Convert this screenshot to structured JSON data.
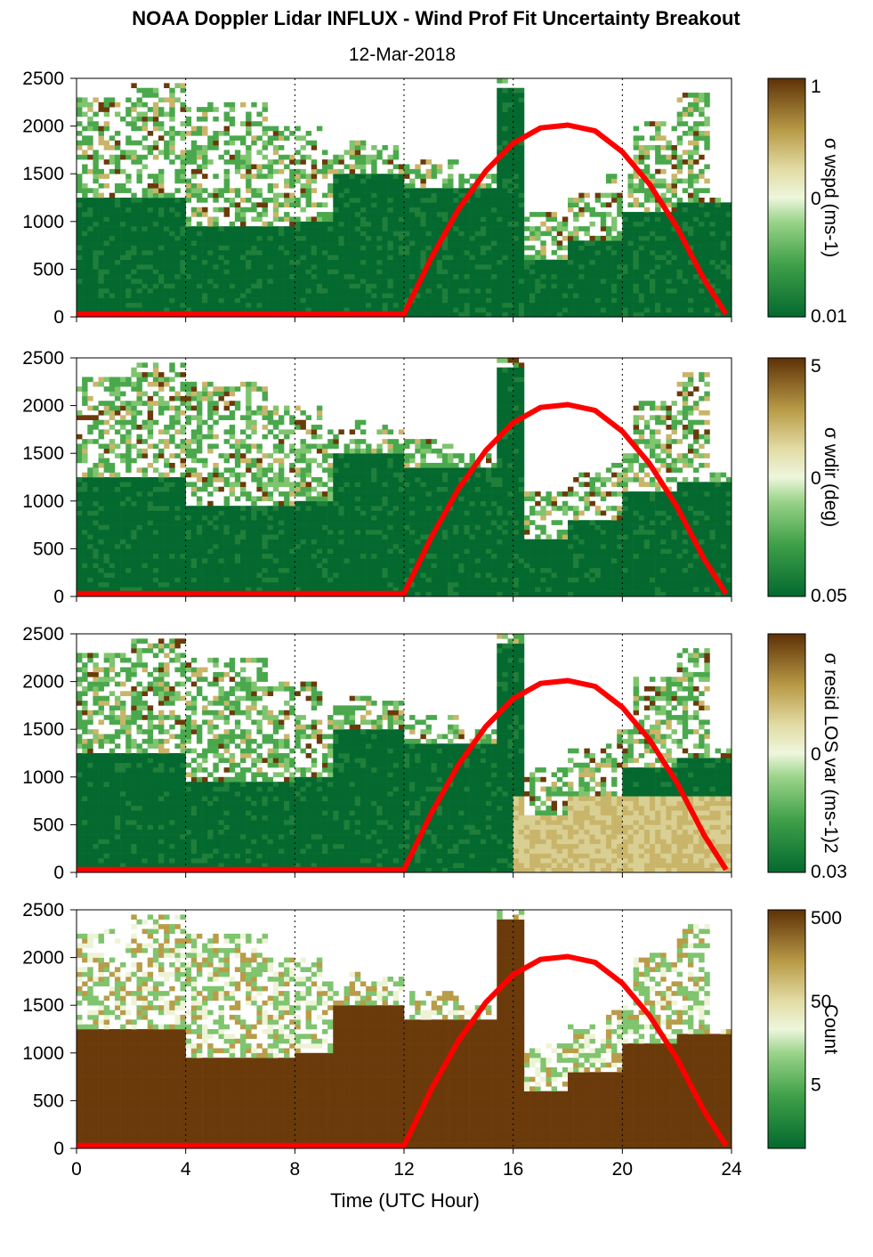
{
  "title": "NOAA Doppler Lidar INFLUX - Wind Prof Fit Uncertainty Breakout",
  "subtitle": "12-Mar-2018",
  "xlabel": "Time (UTC Hour)",
  "colors": {
    "brown": "#6b3a0b",
    "tan": "#c9b56a",
    "pale": "#eef3d6",
    "light_green": "#7fc46e",
    "dark_green": "#04692f",
    "sun_curve": "#ff0000"
  },
  "chart_data": [
    {
      "type": "heatmap",
      "id": "panel-wspd",
      "x_ticks": [
        "0",
        "4",
        "8",
        "12",
        "16",
        "20",
        "24"
      ],
      "y_ticks": [
        "0",
        "500",
        "1000",
        "1500",
        "2000",
        "2500"
      ],
      "xlim": [
        0,
        24
      ],
      "ylim": [
        0,
        2500
      ],
      "colorbar": {
        "label": "σ wspd (ms-1)",
        "ticks": [
          "1",
          "0",
          "0.01"
        ],
        "scale": "log"
      },
      "sun_elevation_curve": {
        "x": [
          0,
          12,
          13,
          14,
          15,
          16,
          17,
          18,
          19,
          20,
          21,
          22,
          23,
          23.8
        ],
        "y": [
          30,
          30,
          620,
          1130,
          1530,
          1820,
          1980,
          2010,
          1950,
          1730,
          1390,
          940,
          390,
          30
        ]
      }
    },
    {
      "type": "heatmap",
      "id": "panel-wdir",
      "x_ticks": [
        "0",
        "4",
        "8",
        "12",
        "16",
        "20",
        "24"
      ],
      "y_ticks": [
        "0",
        "500",
        "1000",
        "1500",
        "2000",
        "2500"
      ],
      "xlim": [
        0,
        24
      ],
      "ylim": [
        0,
        2500
      ],
      "colorbar": {
        "label": "σ wdir (deg)",
        "ticks": [
          "5",
          "0",
          "0.05"
        ],
        "scale": "log"
      },
      "sun_elevation_curve": {
        "x": [
          0,
          12,
          13,
          14,
          15,
          16,
          17,
          18,
          19,
          20,
          21,
          22,
          23,
          23.8
        ],
        "y": [
          30,
          30,
          620,
          1130,
          1530,
          1820,
          1980,
          2010,
          1950,
          1730,
          1390,
          940,
          390,
          30
        ]
      }
    },
    {
      "type": "heatmap",
      "id": "panel-resid",
      "x_ticks": [
        "0",
        "4",
        "8",
        "12",
        "16",
        "20",
        "24"
      ],
      "y_ticks": [
        "0",
        "500",
        "1000",
        "1500",
        "2000",
        "2500"
      ],
      "xlim": [
        0,
        24
      ],
      "ylim": [
        0,
        2500
      ],
      "colorbar": {
        "label": "σ resid LOS var (ms-1)2",
        "ticks": [
          "0",
          "0.03"
        ],
        "scale": "log"
      },
      "sun_elevation_curve": {
        "x": [
          0,
          12,
          13,
          14,
          15,
          16,
          17,
          18,
          19,
          20,
          21,
          22,
          23,
          23.8
        ],
        "y": [
          30,
          30,
          620,
          1130,
          1530,
          1820,
          1980,
          2010,
          1950,
          1730,
          1390,
          940,
          390,
          30
        ]
      }
    },
    {
      "type": "heatmap",
      "id": "panel-count",
      "x_ticks": [
        "0",
        "4",
        "8",
        "12",
        "16",
        "20",
        "24"
      ],
      "y_ticks": [
        "0",
        "500",
        "1000",
        "1500",
        "2000",
        "2500"
      ],
      "xlim": [
        0,
        24
      ],
      "ylim": [
        0,
        2500
      ],
      "colorbar": {
        "label": "Count",
        "ticks": [
          "500",
          "50",
          "5"
        ],
        "scale": "log"
      },
      "sun_elevation_curve": {
        "x": [
          0,
          12,
          13,
          14,
          15,
          16,
          17,
          18,
          19,
          20,
          21,
          22,
          23,
          23.8
        ],
        "y": [
          30,
          30,
          620,
          1130,
          1530,
          1820,
          1980,
          2010,
          1950,
          1730,
          1390,
          940,
          390,
          30
        ]
      }
    }
  ]
}
